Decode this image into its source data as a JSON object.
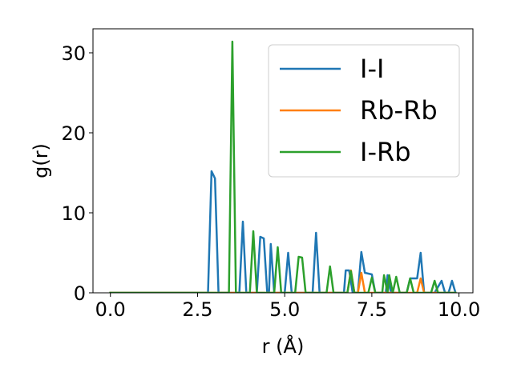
{
  "chart_data": {
    "type": "line",
    "xlabel": "r (Å)",
    "ylabel": "g(r)",
    "xlim": [
      -0.5,
      10.4
    ],
    "ylim": [
      0,
      33
    ],
    "xticks": [
      0.0,
      2.5,
      5.0,
      7.5,
      10.0
    ],
    "xtick_labels": [
      "0.0",
      "2.5",
      "5.0",
      "7.5",
      "10.0"
    ],
    "yticks": [
      0,
      10,
      20,
      30
    ],
    "ytick_labels": [
      "0",
      "10",
      "20",
      "30"
    ],
    "grid": false,
    "legend": "top-right",
    "series": [
      {
        "name": "I-I",
        "color": "#1f77b4",
        "points": [
          [
            0,
            0
          ],
          [
            2.8,
            0
          ],
          [
            2.9,
            15.2
          ],
          [
            3.0,
            14.3
          ],
          [
            3.1,
            0
          ],
          [
            3.7,
            0
          ],
          [
            3.8,
            8.9
          ],
          [
            3.9,
            0
          ],
          [
            4.2,
            0
          ],
          [
            4.3,
            7.0
          ],
          [
            4.4,
            6.8
          ],
          [
            4.5,
            0
          ],
          [
            4.55,
            0
          ],
          [
            4.6,
            6.1
          ],
          [
            4.7,
            0
          ],
          [
            4.9,
            0
          ],
          [
            5.0,
            0
          ],
          [
            5.1,
            5.0
          ],
          [
            5.2,
            0
          ],
          [
            5.8,
            0
          ],
          [
            5.9,
            7.5
          ],
          [
            6.0,
            0
          ],
          [
            6.7,
            0
          ],
          [
            6.75,
            2.8
          ],
          [
            6.85,
            2.8
          ],
          [
            6.95,
            0
          ],
          [
            7.1,
            0
          ],
          [
            7.2,
            5.1
          ],
          [
            7.3,
            2.5
          ],
          [
            7.5,
            2.3
          ],
          [
            7.6,
            0
          ],
          [
            7.9,
            0
          ],
          [
            7.95,
            2.2
          ],
          [
            8.05,
            0
          ],
          [
            8.5,
            0
          ],
          [
            8.6,
            1.8
          ],
          [
            8.8,
            1.8
          ],
          [
            8.9,
            5.0
          ],
          [
            9.0,
            0
          ],
          [
            9.3,
            0
          ],
          [
            9.5,
            1.5
          ],
          [
            9.6,
            0
          ],
          [
            9.7,
            0
          ],
          [
            9.8,
            1.5
          ],
          [
            9.9,
            0
          ]
        ]
      },
      {
        "name": "Rb-Rb",
        "color": "#ff7f0e",
        "points": [
          [
            0,
            0
          ],
          [
            6.8,
            0
          ],
          [
            6.9,
            2.8
          ],
          [
            7.0,
            0
          ],
          [
            7.1,
            0
          ],
          [
            7.2,
            2.5
          ],
          [
            7.3,
            0
          ],
          [
            8.8,
            0
          ],
          [
            8.9,
            1.8
          ],
          [
            9.0,
            0
          ],
          [
            9.9,
            0
          ]
        ]
      },
      {
        "name": "I-Rb",
        "color": "#2ca02c",
        "points": [
          [
            0,
            0
          ],
          [
            3.4,
            0
          ],
          [
            3.5,
            31.4
          ],
          [
            3.6,
            0
          ],
          [
            4.0,
            0
          ],
          [
            4.1,
            7.7
          ],
          [
            4.2,
            0
          ],
          [
            4.7,
            0
          ],
          [
            4.8,
            5.7
          ],
          [
            4.9,
            0
          ],
          [
            5.3,
            0
          ],
          [
            5.4,
            4.5
          ],
          [
            5.5,
            4.4
          ],
          [
            5.6,
            0
          ],
          [
            6.2,
            0
          ],
          [
            6.3,
            3.3
          ],
          [
            6.4,
            0
          ],
          [
            6.8,
            0
          ],
          [
            6.9,
            2.7
          ],
          [
            7.0,
            0
          ],
          [
            7.4,
            0
          ],
          [
            7.5,
            1.9
          ],
          [
            7.6,
            0
          ],
          [
            7.8,
            0
          ],
          [
            7.85,
            2.2
          ],
          [
            7.95,
            0
          ],
          [
            8.0,
            2.2
          ],
          [
            8.1,
            0
          ],
          [
            8.2,
            2.0
          ],
          [
            8.3,
            0
          ],
          [
            8.5,
            0
          ],
          [
            8.6,
            1.8
          ],
          [
            8.7,
            0
          ],
          [
            9.2,
            0
          ],
          [
            9.3,
            1.5
          ],
          [
            9.4,
            0
          ],
          [
            9.9,
            0
          ]
        ]
      }
    ]
  }
}
